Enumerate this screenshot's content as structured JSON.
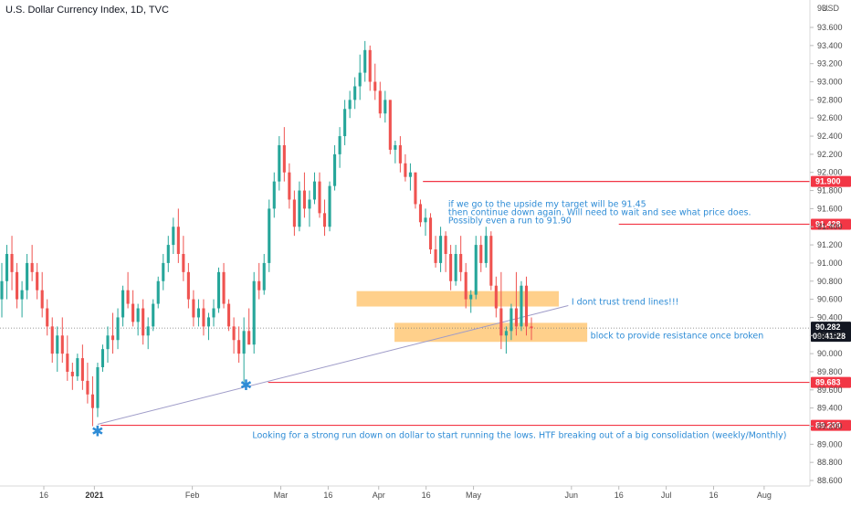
{
  "chart_data": {
    "type": "candlestick",
    "title": "U.S. Dollar Currency Index, 1D, TVC",
    "currency": "USD",
    "ylim": [
      88.5,
      93.8
    ],
    "y_ticks": [
      "93.600",
      "93.400",
      "93.200",
      "93.000",
      "92.800",
      "92.600",
      "92.400",
      "92.200",
      "92.000",
      "91.800",
      "91.600",
      "91.400",
      "91.200",
      "91.000",
      "90.800",
      "90.600",
      "90.400",
      "90.200",
      "90.000",
      "89.800",
      "89.600",
      "89.400",
      "89.200",
      "89.000",
      "88.800",
      "88.600"
    ],
    "x_ticks": [
      {
        "label": "16",
        "day": 0
      },
      {
        "label": "2021",
        "day": 16,
        "bold": true
      },
      {
        "label": "Feb",
        "day": 47
      },
      {
        "label": "Mar",
        "day": 75
      },
      {
        "label": "16",
        "day": 90
      },
      {
        "label": "Apr",
        "day": 106
      },
      {
        "label": "16",
        "day": 121
      },
      {
        "label": "May",
        "day": 136
      },
      {
        "label": "Jun",
        "day": 167
      },
      {
        "label": "16",
        "day": 182
      },
      {
        "label": "Jul",
        "day": 197
      },
      {
        "label": "16",
        "day": 212
      },
      {
        "label": "Aug",
        "day": 228
      }
    ],
    "candles": [
      [
        90.6,
        91.0,
        90.4,
        90.8
      ],
      [
        90.8,
        91.2,
        90.6,
        91.1
      ],
      [
        91.1,
        91.3,
        90.7,
        90.9
      ],
      [
        90.9,
        91.0,
        90.5,
        90.6
      ],
      [
        90.6,
        90.8,
        90.4,
        90.7
      ],
      [
        90.7,
        91.1,
        90.6,
        91.0
      ],
      [
        91.0,
        91.2,
        90.8,
        90.9
      ],
      [
        90.9,
        91.0,
        90.6,
        90.7
      ],
      [
        90.7,
        90.9,
        90.4,
        90.5
      ],
      [
        90.5,
        90.6,
        90.2,
        90.3
      ],
      [
        90.3,
        90.4,
        89.9,
        90.0
      ],
      [
        90.0,
        90.3,
        89.8,
        90.2
      ],
      [
        90.2,
        90.4,
        89.9,
        90.0
      ],
      [
        90.0,
        90.2,
        89.7,
        89.8
      ],
      [
        89.8,
        89.9,
        89.6,
        89.75
      ],
      [
        89.75,
        90.0,
        89.7,
        89.95
      ],
      [
        89.95,
        90.1,
        89.6,
        89.7
      ],
      [
        89.7,
        89.9,
        89.45,
        89.55
      ],
      [
        89.55,
        89.75,
        89.2,
        89.4
      ],
      [
        89.4,
        89.9,
        89.3,
        89.85
      ],
      [
        89.85,
        90.1,
        89.8,
        90.05
      ],
      [
        90.05,
        90.3,
        89.9,
        90.2
      ],
      [
        90.2,
        90.45,
        90.0,
        90.15
      ],
      [
        90.15,
        90.5,
        90.05,
        90.4
      ],
      [
        90.4,
        90.75,
        90.3,
        90.7
      ],
      [
        90.7,
        90.9,
        90.5,
        90.55
      ],
      [
        90.55,
        90.7,
        90.3,
        90.35
      ],
      [
        90.35,
        90.55,
        90.2,
        90.5
      ],
      [
        90.5,
        90.6,
        90.1,
        90.2
      ],
      [
        90.2,
        90.4,
        90.05,
        90.3
      ],
      [
        90.3,
        90.6,
        90.25,
        90.55
      ],
      [
        90.55,
        90.85,
        90.5,
        90.8
      ],
      [
        90.8,
        91.1,
        90.7,
        91.0
      ],
      [
        91.0,
        91.3,
        90.9,
        91.2
      ],
      [
        91.2,
        91.5,
        91.1,
        91.4
      ],
      [
        91.4,
        91.6,
        91.0,
        91.1
      ],
      [
        91.1,
        91.3,
        90.8,
        90.9
      ],
      [
        90.9,
        91.0,
        90.5,
        90.6
      ],
      [
        90.6,
        90.7,
        90.3,
        90.4
      ],
      [
        90.4,
        90.6,
        90.3,
        90.5
      ],
      [
        90.5,
        90.6,
        90.2,
        90.3
      ],
      [
        90.3,
        90.45,
        90.15,
        90.4
      ],
      [
        90.4,
        90.6,
        90.3,
        90.5
      ],
      [
        90.5,
        90.95,
        90.45,
        90.9
      ],
      [
        90.9,
        91.0,
        90.5,
        90.55
      ],
      [
        90.55,
        90.6,
        90.25,
        90.3
      ],
      [
        90.3,
        90.4,
        90.0,
        90.15
      ],
      [
        90.15,
        90.3,
        89.9,
        90.0
      ],
      [
        90.0,
        90.4,
        89.65,
        90.25
      ],
      [
        90.25,
        90.5,
        90.1,
        90.1
      ],
      [
        90.1,
        90.9,
        90.0,
        90.8
      ],
      [
        90.8,
        91.0,
        90.6,
        90.7
      ],
      [
        90.7,
        91.1,
        90.65,
        91.0
      ],
      [
        91.0,
        91.7,
        90.9,
        91.6
      ],
      [
        91.6,
        92.0,
        91.5,
        91.9
      ],
      [
        91.9,
        92.4,
        91.8,
        92.3
      ],
      [
        92.3,
        92.5,
        91.9,
        92.0
      ],
      [
        92.0,
        92.1,
        91.6,
        91.7
      ],
      [
        91.7,
        91.8,
        91.3,
        91.4
      ],
      [
        91.4,
        91.9,
        91.35,
        91.8
      ],
      [
        91.8,
        92.0,
        91.5,
        91.6
      ],
      [
        91.6,
        91.8,
        91.4,
        91.7
      ],
      [
        91.7,
        92.0,
        91.65,
        91.9
      ],
      [
        91.9,
        92.0,
        91.5,
        91.55
      ],
      [
        91.55,
        91.7,
        91.3,
        91.4
      ],
      [
        91.4,
        91.9,
        91.35,
        91.85
      ],
      [
        91.85,
        92.3,
        91.8,
        92.2
      ],
      [
        92.2,
        92.5,
        92.05,
        92.4
      ],
      [
        92.4,
        92.8,
        92.3,
        92.7
      ],
      [
        92.7,
        92.9,
        92.6,
        92.8
      ],
      [
        92.8,
        93.05,
        92.7,
        92.95
      ],
      [
        92.95,
        93.3,
        92.8,
        93.1
      ],
      [
        93.1,
        93.45,
        93.0,
        93.35
      ],
      [
        93.35,
        93.4,
        92.9,
        93.0
      ],
      [
        93.0,
        93.2,
        92.8,
        92.9
      ],
      [
        92.9,
        93.0,
        92.6,
        92.65
      ],
      [
        92.65,
        92.9,
        92.55,
        92.8
      ],
      [
        92.8,
        92.8,
        92.2,
        92.25
      ],
      [
        92.25,
        92.35,
        92.1,
        92.3
      ],
      [
        92.3,
        92.4,
        92.0,
        92.1
      ],
      [
        92.1,
        92.2,
        91.9,
        91.95
      ],
      [
        91.95,
        92.1,
        91.8,
        92.0
      ],
      [
        92.0,
        92.0,
        91.6,
        91.65
      ],
      [
        91.65,
        91.7,
        91.4,
        91.45
      ],
      [
        91.45,
        91.6,
        91.3,
        91.5
      ],
      [
        91.5,
        91.55,
        91.1,
        91.15
      ],
      [
        91.15,
        91.3,
        90.95,
        91.0
      ],
      [
        91.0,
        91.4,
        90.9,
        91.3
      ],
      [
        91.3,
        91.35,
        90.9,
        91.1
      ],
      [
        91.1,
        91.2,
        90.7,
        90.8
      ],
      [
        90.8,
        91.2,
        90.75,
        91.1
      ],
      [
        91.1,
        91.3,
        90.8,
        90.9
      ],
      [
        90.9,
        91.0,
        90.5,
        90.6
      ],
      [
        90.6,
        90.7,
        90.45,
        90.65
      ],
      [
        90.65,
        91.3,
        90.6,
        91.2
      ],
      [
        91.2,
        91.3,
        90.9,
        91.0
      ],
      [
        91.0,
        91.4,
        90.95,
        91.3
      ],
      [
        91.3,
        91.35,
        90.7,
        90.75
      ],
      [
        90.75,
        90.85,
        90.4,
        90.5
      ],
      [
        90.5,
        90.9,
        90.05,
        90.2
      ],
      [
        90.2,
        90.3,
        90.0,
        90.25
      ],
      [
        90.25,
        90.55,
        90.15,
        90.5
      ],
      [
        90.5,
        90.9,
        90.2,
        90.3
      ],
      [
        90.3,
        90.8,
        90.25,
        90.75
      ],
      [
        90.75,
        90.85,
        90.2,
        90.3
      ],
      [
        90.3,
        90.4,
        90.15,
        90.28
      ]
    ],
    "levels": [
      {
        "value": 91.9,
        "label": "91.900"
      },
      {
        "value": 91.428,
        "label": "91.428"
      },
      {
        "value": 89.683,
        "label": "89.683"
      },
      {
        "value": 89.209,
        "label": "89.209"
      }
    ],
    "current": {
      "value": 90.282,
      "label": "90.282",
      "countdown": "09:41:28"
    },
    "zones": [
      {
        "from_day": 99,
        "to_day": 163,
        "low": 90.52,
        "high": 90.69
      },
      {
        "from_day": 111,
        "to_day": 172,
        "low": 90.13,
        "high": 90.34
      }
    ],
    "trendline": {
      "start": [
        17,
        89.22
      ],
      "end": [
        166,
        90.53
      ]
    },
    "markers": [
      {
        "day": 17,
        "value": 89.09,
        "symbol": "✱"
      },
      {
        "day": 64,
        "value": 89.6,
        "symbol": "✱"
      }
    ],
    "annotations": [
      {
        "day": 128,
        "value": 91.62,
        "text": "if we go to the upside my target will be 91.45"
      },
      {
        "day": 128,
        "value": 91.53,
        "text": "then continue down again. Will need to wait and see what price does."
      },
      {
        "day": 128,
        "value": 91.44,
        "text": "Possibly even a run to 91.90"
      },
      {
        "day": 167,
        "value": 90.54,
        "text": "I dont trust trend lines!!!"
      },
      {
        "day": 173,
        "value": 90.17,
        "text": "block to provide resistance once broken"
      },
      {
        "day": 66,
        "value": 89.07,
        "text": "Looking for a strong run down on dollar to start running the lows. HTF breaking out of a big consolidation (weekly/Monthly)"
      }
    ],
    "colors": {
      "up": "#26a69a",
      "down": "#ef5350",
      "level": "#f23645",
      "zone": "#ffb74d",
      "trendline": "#9e9bc8",
      "note": "#2e8cd6",
      "current": "#131722"
    }
  }
}
